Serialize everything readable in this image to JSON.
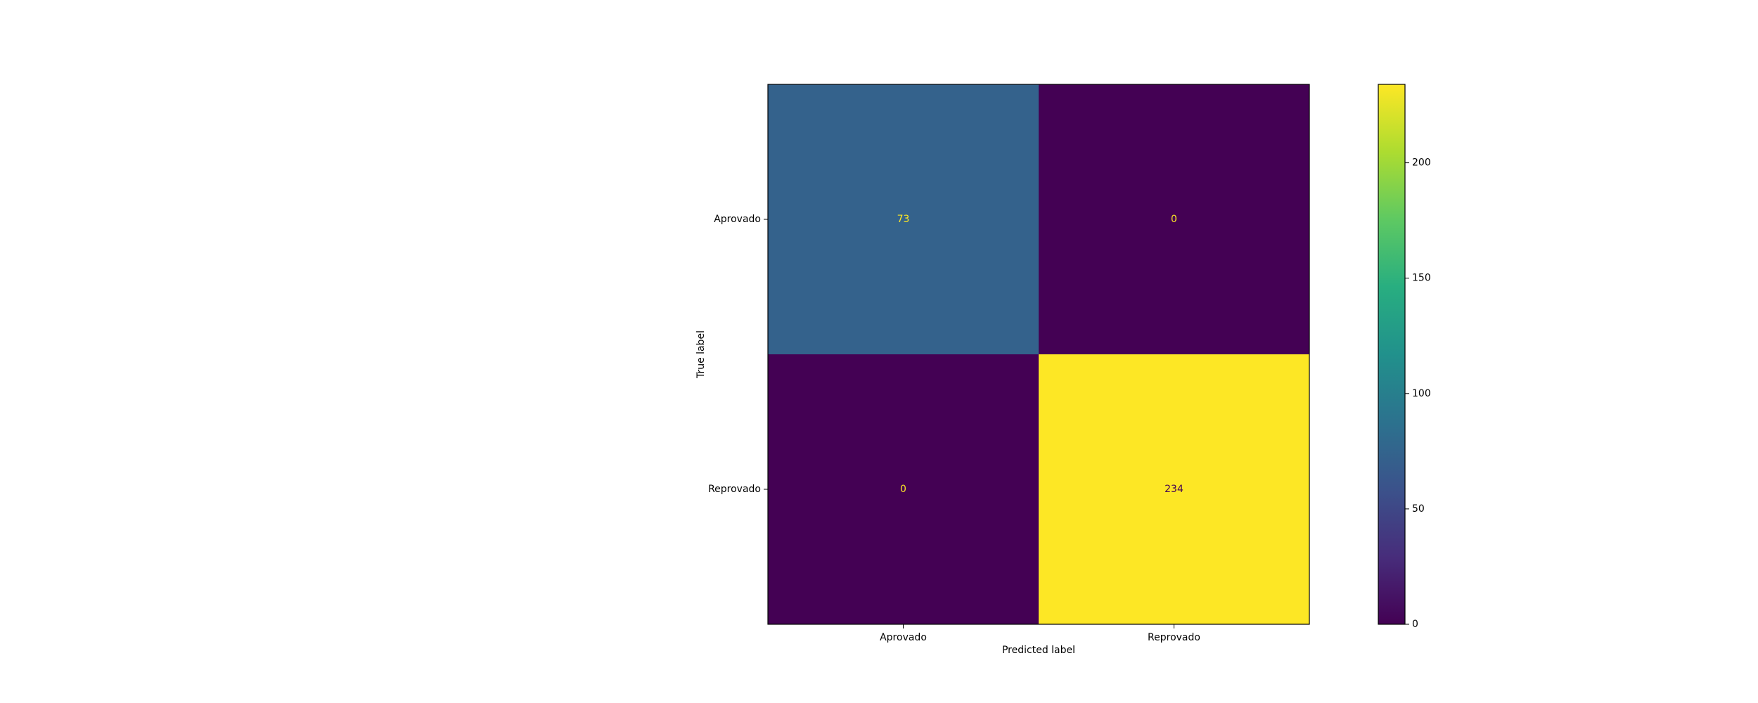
{
  "chart_data": {
    "type": "heatmap",
    "xlabel": "Predicted label",
    "ylabel": "True label",
    "x_categories": [
      "Aprovado",
      "Reprovado"
    ],
    "y_categories": [
      "Aprovado",
      "Reprovado"
    ],
    "values": [
      [
        73,
        0
      ],
      [
        0,
        234
      ]
    ],
    "colormap": "viridis",
    "colorbar": {
      "lim": [
        0,
        234
      ],
      "ticks": [
        0,
        50,
        100,
        150,
        200
      ]
    }
  }
}
